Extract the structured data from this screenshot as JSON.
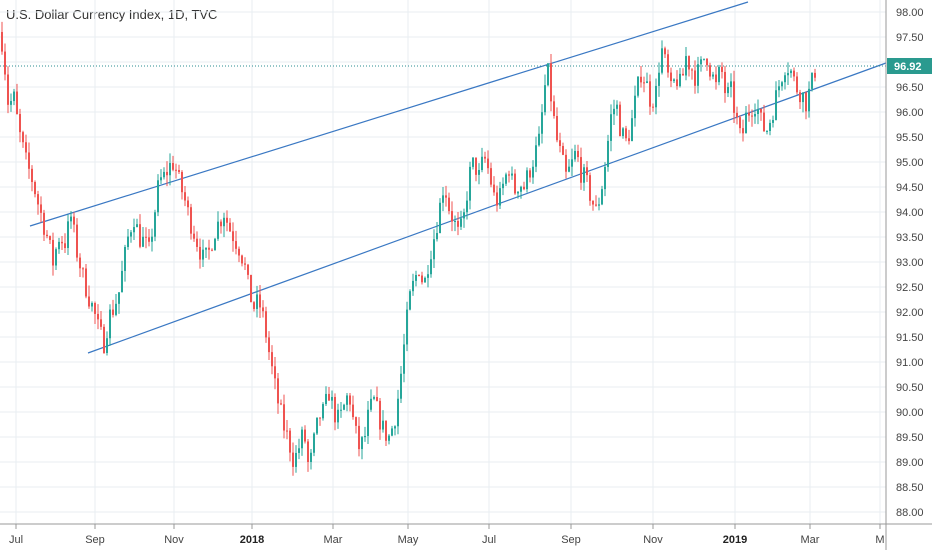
{
  "chart_data": {
    "type": "candlestick",
    "title": "U.S. Dollar Currency Index, 1D, TVC",
    "y_ticks": [
      "98.00",
      "97.50",
      "97.00",
      "96.50",
      "96.00",
      "95.50",
      "95.00",
      "94.50",
      "94.00",
      "93.50",
      "93.00",
      "92.50",
      "92.00",
      "91.50",
      "91.00",
      "90.50",
      "90.00",
      "89.50",
      "89.00",
      "88.50",
      "88.00"
    ],
    "ylim": [
      87.9,
      98.2
    ],
    "x_ticks": [
      {
        "label": "Jul",
        "bold": false
      },
      {
        "label": "Sep",
        "bold": false
      },
      {
        "label": "Nov",
        "bold": false
      },
      {
        "label": "2018",
        "bold": true
      },
      {
        "label": "Mar",
        "bold": false
      },
      {
        "label": "May",
        "bold": false
      },
      {
        "label": "Jul",
        "bold": false
      },
      {
        "label": "Sep",
        "bold": false
      },
      {
        "label": "Nov",
        "bold": false
      },
      {
        "label": "2019",
        "bold": true
      },
      {
        "label": "Mar",
        "bold": false
      },
      {
        "label": "M",
        "bold": false
      }
    ],
    "last_price": "96.92",
    "price_path": [
      [
        0,
        97.6
      ],
      [
        3,
        97.1
      ],
      [
        8,
        96.0
      ],
      [
        12,
        96.4
      ],
      [
        18,
        95.6
      ],
      [
        25,
        95.0
      ],
      [
        32,
        94.6
      ],
      [
        38,
        94.1
      ],
      [
        45,
        93.6
      ],
      [
        52,
        93.0
      ],
      [
        58,
        93.5
      ],
      [
        64,
        93.4
      ],
      [
        70,
        93.9
      ],
      [
        76,
        93.2
      ],
      [
        82,
        92.7
      ],
      [
        88,
        92.3
      ],
      [
        93,
        92.0
      ],
      [
        98,
        91.6
      ],
      [
        103,
        91.4
      ],
      [
        108,
        91.9
      ],
      [
        113,
        92.1
      ],
      [
        118,
        92.4
      ],
      [
        123,
        93.0
      ],
      [
        128,
        93.6
      ],
      [
        133,
        93.9
      ],
      [
        138,
        93.5
      ],
      [
        143,
        93.4
      ],
      [
        148,
        93.2
      ],
      [
        153,
        93.9
      ],
      [
        158,
        94.6
      ],
      [
        163,
        94.7
      ],
      [
        168,
        94.9
      ],
      [
        173,
        95.0
      ],
      [
        178,
        94.6
      ],
      [
        183,
        94.3
      ],
      [
        188,
        93.9
      ],
      [
        193,
        93.6
      ],
      [
        198,
        93.3
      ],
      [
        203,
        93.0
      ],
      [
        208,
        93.2
      ],
      [
        213,
        93.6
      ],
      [
        218,
        93.8
      ],
      [
        223,
        94.0
      ],
      [
        228,
        93.7
      ],
      [
        233,
        93.5
      ],
      [
        238,
        93.3
      ],
      [
        243,
        93.0
      ],
      [
        248,
        92.4
      ],
      [
        253,
        92.1
      ],
      [
        258,
        92.2
      ],
      [
        263,
        91.8
      ],
      [
        268,
        91.2
      ],
      [
        273,
        90.6
      ],
      [
        278,
        90.1
      ],
      [
        283,
        89.7
      ],
      [
        288,
        89.4
      ],
      [
        293,
        89.0
      ],
      [
        298,
        89.3
      ],
      [
        303,
        89.6
      ],
      [
        308,
        88.8
      ],
      [
        313,
        89.4
      ],
      [
        318,
        89.9
      ],
      [
        323,
        90.0
      ],
      [
        328,
        90.4
      ],
      [
        333,
        90.0
      ],
      [
        338,
        89.8
      ],
      [
        343,
        90.1
      ],
      [
        348,
        90.4
      ],
      [
        353,
        89.7
      ],
      [
        358,
        89.3
      ],
      [
        363,
        89.4
      ],
      [
        368,
        90.0
      ],
      [
        373,
        90.2
      ],
      [
        378,
        89.9
      ],
      [
        383,
        89.6
      ],
      [
        388,
        89.5
      ],
      [
        393,
        89.8
      ],
      [
        398,
        90.4
      ],
      [
        403,
        91.3
      ],
      [
        408,
        92.2
      ],
      [
        413,
        92.6
      ],
      [
        418,
        92.9
      ],
      [
        423,
        92.5
      ],
      [
        428,
        93.1
      ],
      [
        433,
        93.5
      ],
      [
        438,
        94.0
      ],
      [
        443,
        94.6
      ],
      [
        448,
        94.1
      ],
      [
        453,
        93.8
      ],
      [
        458,
        93.5
      ],
      [
        463,
        93.9
      ],
      [
        468,
        94.7
      ],
      [
        473,
        95.0
      ],
      [
        478,
        94.7
      ],
      [
        483,
        95.1
      ],
      [
        488,
        94.8
      ],
      [
        493,
        94.3
      ],
      [
        498,
        94.2
      ],
      [
        503,
        94.6
      ],
      [
        508,
        94.9
      ],
      [
        513,
        94.4
      ],
      [
        518,
        94.6
      ],
      [
        523,
        94.5
      ],
      [
        528,
        94.8
      ],
      [
        533,
        95.1
      ],
      [
        538,
        95.4
      ],
      [
        543,
        96.3
      ],
      [
        546,
        96.9
      ],
      [
        550,
        96.3
      ],
      [
        555,
        95.5
      ],
      [
        560,
        95.1
      ],
      [
        565,
        94.7
      ],
      [
        570,
        94.9
      ],
      [
        575,
        95.2
      ],
      [
        580,
        94.8
      ],
      [
        585,
        94.6
      ],
      [
        590,
        94.3
      ],
      [
        595,
        94.0
      ],
      [
        600,
        94.4
      ],
      [
        605,
        95.1
      ],
      [
        610,
        95.9
      ],
      [
        615,
        96.2
      ],
      [
        620,
        95.6
      ],
      [
        625,
        95.4
      ],
      [
        630,
        95.7
      ],
      [
        635,
        96.3
      ],
      [
        640,
        96.8
      ],
      [
        645,
        96.6
      ],
      [
        650,
        96.2
      ],
      [
        655,
        96.4
      ],
      [
        660,
        97.3
      ],
      [
        665,
        96.9
      ],
      [
        670,
        96.4
      ],
      [
        675,
        96.7
      ],
      [
        680,
        96.5
      ],
      [
        685,
        97.1
      ],
      [
        690,
        96.9
      ],
      [
        695,
        96.7
      ],
      [
        700,
        96.9
      ],
      [
        705,
        97.2
      ],
      [
        710,
        96.8
      ],
      [
        715,
        96.5
      ],
      [
        720,
        96.9
      ],
      [
        725,
        96.3
      ],
      [
        730,
        96.4
      ],
      [
        735,
        95.9
      ],
      [
        740,
        95.4
      ],
      [
        745,
        95.9
      ],
      [
        750,
        96.1
      ],
      [
        755,
        96.2
      ],
      [
        760,
        95.8
      ],
      [
        765,
        95.6
      ],
      [
        770,
        95.9
      ],
      [
        775,
        96.3
      ],
      [
        780,
        96.7
      ],
      [
        785,
        97.0
      ],
      [
        790,
        96.8
      ],
      [
        795,
        96.5
      ],
      [
        800,
        96.4
      ],
      [
        805,
        96.2
      ],
      [
        810,
        96.5
      ],
      [
        815,
        96.92
      ]
    ]
  }
}
